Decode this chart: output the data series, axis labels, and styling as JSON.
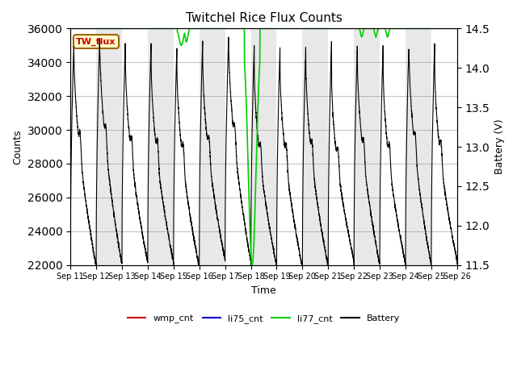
{
  "title": "Twitchel Rice Flux Counts",
  "xlabel": "Time",
  "ylabel_left": "Counts",
  "ylabel_right": "Battery (V)",
  "ylim_left": [
    22000,
    36000
  ],
  "ylim_right": [
    11.5,
    14.5
  ],
  "yticks_left": [
    22000,
    24000,
    26000,
    28000,
    30000,
    32000,
    34000,
    36000
  ],
  "yticks_right": [
    11.5,
    12.0,
    12.5,
    13.0,
    13.5,
    14.0,
    14.5
  ],
  "n_days": 15,
  "xtick_labels": [
    "Sep 11",
    "Sep 12",
    "Sep 13",
    "Sep 14",
    "Sep 15",
    "Sep 16",
    "Sep 17",
    "Sep 18",
    "Sep 19",
    "Sep 20",
    "Sep 21",
    "Sep 22",
    "Sep 23",
    "Sep 24",
    "Sep 25",
    "Sep 26"
  ],
  "li75_color": "#0000cc",
  "li77_color": "#00cc00",
  "wmp_color": "#cc0000",
  "battery_color": "#000000",
  "background_stripe_color": "#e8e8e8",
  "tw_flux_box_color": "#ffffcc",
  "tw_flux_text_color": "#cc0000",
  "tw_flux_border_color": "#996600",
  "bat_min": 11.5,
  "bat_max": 14.5,
  "cnt_min": 22000,
  "cnt_max": 36000
}
